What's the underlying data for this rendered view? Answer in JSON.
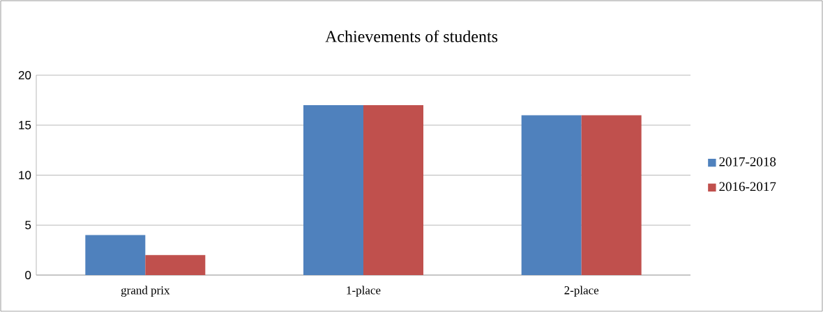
{
  "chart_data": {
    "type": "bar",
    "title": "Achievements of students",
    "categories": [
      "grand prix",
      "1-place",
      "2-place"
    ],
    "series": [
      {
        "name": "2017-2018",
        "color": "#4f81bd",
        "values": [
          4,
          17,
          16
        ]
      },
      {
        "name": "2016-2017",
        "color": "#c0504d",
        "values": [
          2,
          17,
          16
        ]
      }
    ],
    "ylim": [
      0,
      20
    ],
    "yticks": [
      0,
      5,
      10,
      15,
      20
    ],
    "grid": "y",
    "legend": "right"
  }
}
